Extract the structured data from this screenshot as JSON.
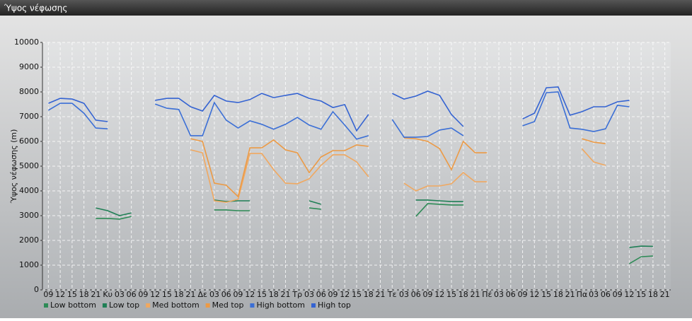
{
  "chart_data": {
    "type": "line",
    "title": "Ύψος νέφωσης",
    "y_label": "Ύψος νέφωσης (m)",
    "categories": [
      "09",
      "12",
      "15",
      "18",
      "21",
      "Κυ",
      "03",
      "06",
      "09",
      "12",
      "15",
      "18",
      "21",
      "Δε",
      "03",
      "06",
      "09",
      "12",
      "15",
      "18",
      "21",
      "Τρ",
      "03",
      "06",
      "09",
      "12",
      "15",
      "18",
      "21",
      "Τε",
      "03",
      "06",
      "09",
      "12",
      "15",
      "18",
      "21",
      "Πέ",
      "03",
      "06",
      "09",
      "12",
      "15",
      "18",
      "21",
      "Πα",
      "03",
      "06",
      "09",
      "12",
      "15",
      "18",
      "21"
    ],
    "ylim": [
      0,
      10000
    ],
    "yticks": [
      0,
      1000,
      2000,
      3000,
      4000,
      5000,
      6000,
      7000,
      8000,
      9000,
      10000
    ],
    "grid": true,
    "series": [
      {
        "name": "Low bottom",
        "color": "#2e8b57",
        "values": [
          null,
          null,
          null,
          null,
          2890,
          2890,
          2860,
          2970,
          null,
          null,
          null,
          null,
          null,
          null,
          3230,
          3230,
          3200,
          3200,
          null,
          null,
          null,
          null,
          3310,
          3260,
          null,
          null,
          null,
          null,
          null,
          null,
          null,
          2970,
          3490,
          3460,
          3430,
          3430,
          null,
          null,
          null,
          null,
          null,
          null,
          null,
          null,
          null,
          null,
          null,
          null,
          null,
          1060,
          1340,
          1370,
          null
        ]
      },
      {
        "name": "Low top",
        "color": "#1f7f55",
        "values": [
          null,
          null,
          null,
          null,
          3310,
          3200,
          3000,
          3110,
          null,
          null,
          null,
          null,
          null,
          null,
          3630,
          3570,
          3600,
          3600,
          null,
          null,
          null,
          null,
          3600,
          3460,
          null,
          null,
          null,
          null,
          null,
          null,
          null,
          3630,
          3630,
          3600,
          3570,
          3570,
          null,
          null,
          null,
          null,
          null,
          null,
          null,
          null,
          null,
          null,
          null,
          null,
          null,
          1710,
          1770,
          1760,
          null
        ]
      },
      {
        "name": "Med bottom",
        "color": "#f0a860",
        "values": [
          null,
          null,
          null,
          null,
          null,
          null,
          null,
          null,
          null,
          null,
          null,
          null,
          5660,
          5540,
          3600,
          3540,
          3660,
          5510,
          5510,
          4860,
          4310,
          4290,
          4490,
          5030,
          5460,
          5460,
          5170,
          4570,
          null,
          null,
          4310,
          4000,
          4200,
          4200,
          4290,
          4740,
          4370,
          4370,
          null,
          null,
          null,
          null,
          null,
          null,
          null,
          5710,
          5170,
          5030,
          null,
          null,
          null,
          null,
          null
        ]
      },
      {
        "name": "Med top",
        "color": "#ec9a45",
        "values": [
          null,
          null,
          null,
          null,
          null,
          null,
          null,
          null,
          null,
          null,
          null,
          null,
          6110,
          6000,
          4310,
          4230,
          3770,
          5740,
          5740,
          6060,
          5660,
          5540,
          4740,
          5370,
          5630,
          5630,
          5860,
          5800,
          null,
          null,
          6140,
          6110,
          6000,
          5710,
          4860,
          6000,
          5540,
          5540,
          null,
          null,
          null,
          null,
          null,
          null,
          null,
          6110,
          5970,
          5910,
          null,
          null,
          null,
          null,
          null
        ]
      },
      {
        "name": "High bottom",
        "color": "#3b6fd6",
        "values": [
          7260,
          7540,
          7540,
          7140,
          6540,
          6510,
          null,
          null,
          null,
          7510,
          7340,
          7290,
          6230,
          6230,
          7570,
          6860,
          6540,
          6830,
          6690,
          6490,
          6690,
          6970,
          6660,
          6490,
          7200,
          6660,
          6090,
          6230,
          null,
          6890,
          6170,
          6170,
          6200,
          6460,
          6540,
          6230,
          null,
          null,
          null,
          null,
          6630,
          6800,
          7970,
          8000,
          6540,
          6490,
          6400,
          6510,
          7460,
          7400,
          null,
          null,
          null
        ]
      },
      {
        "name": "High top",
        "color": "#3463d2",
        "values": [
          7540,
          7740,
          7710,
          7540,
          6860,
          6800,
          null,
          null,
          null,
          7660,
          7740,
          7740,
          7400,
          7230,
          7860,
          7630,
          7570,
          7690,
          7940,
          7770,
          7860,
          7940,
          7740,
          7630,
          7370,
          7490,
          6430,
          7090,
          null,
          7940,
          7710,
          7830,
          8030,
          7860,
          7090,
          6600,
          null,
          null,
          null,
          null,
          6910,
          7140,
          8170,
          8200,
          7060,
          7200,
          7400,
          7400,
          7600,
          7660,
          null,
          null,
          null
        ]
      }
    ]
  }
}
